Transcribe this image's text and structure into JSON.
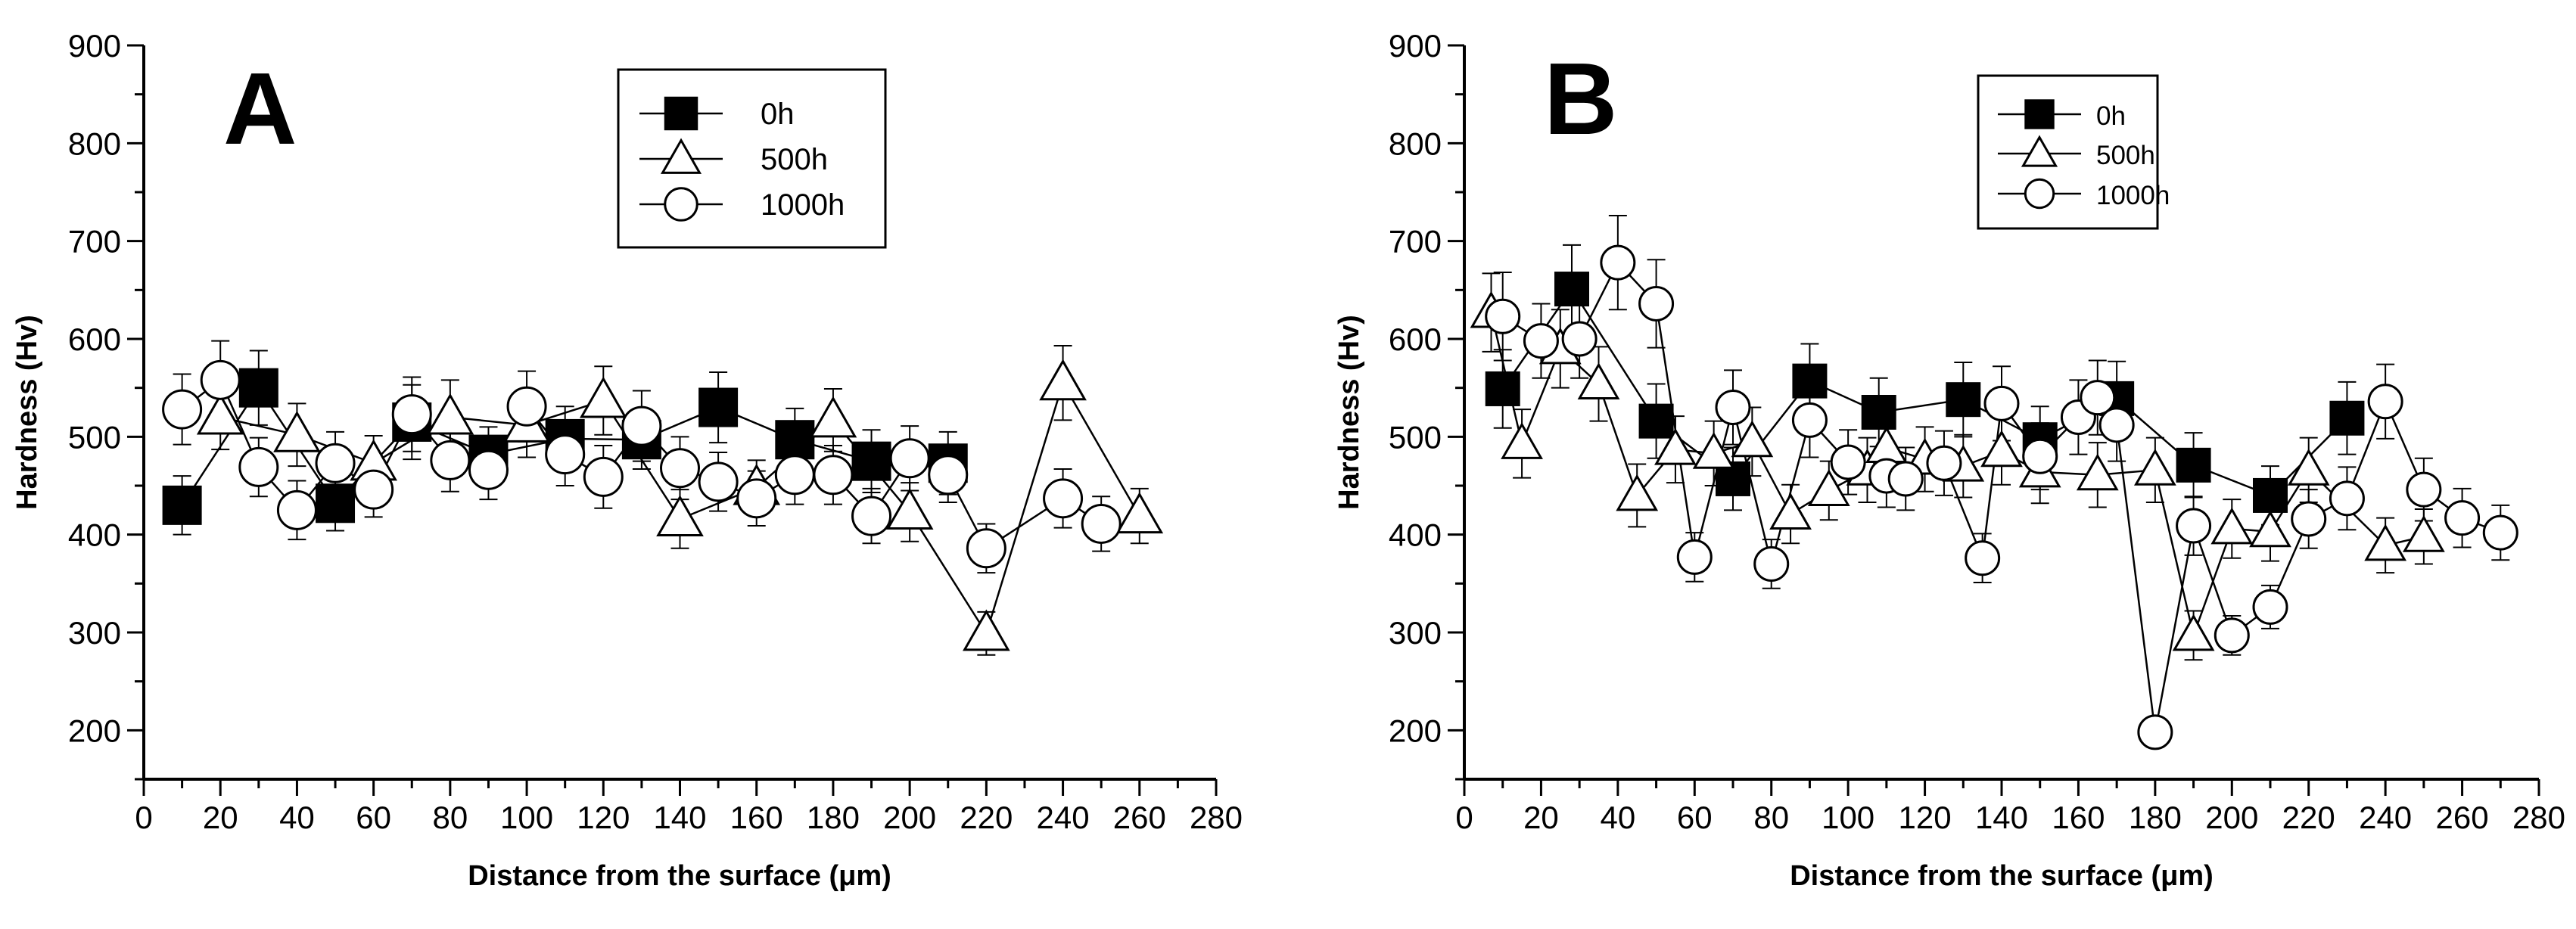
{
  "chart_data": [
    {
      "type": "line",
      "panel_label": "A",
      "xlabel_prefix": "Distance from the surface (",
      "xlabel_unit": "μm",
      "xlabel_suffix": ")",
      "ylabel": "Hardness (Hv)",
      "xlim": [
        0,
        280
      ],
      "ylim": [
        150,
        900
      ],
      "xticks": [
        0,
        20,
        40,
        60,
        80,
        100,
        120,
        140,
        160,
        180,
        200,
        220,
        240,
        260,
        280
      ],
      "yticks": [
        200,
        300,
        400,
        500,
        600,
        700,
        800,
        900
      ],
      "legend_position": "top-center",
      "series": [
        {
          "name": "0h",
          "marker": "square-filled",
          "x": [
            10,
            30,
            50,
            70,
            90,
            110,
            130,
            150,
            170,
            190,
            210
          ],
          "y": [
            430,
            550,
            432,
            515,
            482,
            498,
            497,
            530,
            497,
            475,
            473
          ],
          "err": [
            30,
            38,
            28,
            38,
            28,
            33,
            30,
            36,
            32,
            32,
            32
          ]
        },
        {
          "name": "500h",
          "marker": "triangle-open",
          "x": [
            20,
            40,
            60,
            80,
            100,
            120,
            140,
            160,
            180,
            200,
            220,
            240,
            260
          ],
          "y": [
            520,
            502,
            473,
            520,
            512,
            537,
            416,
            448,
            517,
            423,
            299,
            555,
            419
          ],
          "err": [
            33,
            32,
            28,
            38,
            33,
            35,
            30,
            28,
            32,
            30,
            22,
            38,
            28
          ]
        },
        {
          "name": "1000h",
          "marker": "circle-open",
          "x": [
            10,
            20,
            30,
            40,
            50,
            60,
            70,
            80,
            90,
            100,
            110,
            120,
            130,
            140,
            150,
            160,
            170,
            180,
            190,
            200,
            210,
            220,
            240,
            250
          ],
          "y": [
            528,
            558,
            469,
            425,
            473,
            446,
            523,
            476,
            466,
            531,
            482,
            459,
            511,
            468,
            454,
            437,
            461,
            461,
            419,
            478,
            461,
            386,
            437,
            411
          ],
          "err": [
            36,
            40,
            30,
            30,
            32,
            28,
            38,
            32,
            30,
            36,
            32,
            32,
            36,
            32,
            30,
            28,
            30,
            30,
            28,
            33,
            28,
            25,
            30,
            28
          ]
        }
      ]
    },
    {
      "type": "line",
      "panel_label": "B",
      "xlabel_prefix": "Distance from the surface (",
      "xlabel_unit": "μm",
      "xlabel_suffix": ")",
      "ylabel": "Hardness (Hv)",
      "xlim": [
        0,
        280
      ],
      "ylim": [
        150,
        900
      ],
      "xticks": [
        0,
        20,
        40,
        60,
        80,
        100,
        120,
        140,
        160,
        180,
        200,
        220,
        240,
        260,
        280
      ],
      "yticks": [
        200,
        300,
        400,
        500,
        600,
        700,
        800,
        900
      ],
      "legend_position": "top-right",
      "series": [
        {
          "name": "0h",
          "marker": "square-filled",
          "x": [
            10,
            28,
            50,
            70,
            90,
            108,
            130,
            150,
            170,
            190,
            210,
            230
          ],
          "y": [
            549,
            651,
            516,
            457,
            557,
            525,
            538,
            497,
            539,
            471,
            440,
            519
          ],
          "err": [
            40,
            45,
            38,
            32,
            38,
            35,
            38,
            34,
            38,
            33,
            30,
            37
          ]
        },
        {
          "name": "500h",
          "marker": "triangle-open",
          "x": [
            7,
            15,
            25,
            35,
            45,
            55,
            65,
            75,
            85,
            95,
            105,
            110,
            120,
            130,
            140,
            150,
            165,
            180,
            190,
            200,
            210,
            220,
            240,
            250
          ],
          "y": [
            627,
            493,
            590,
            554,
            440,
            487,
            483,
            495,
            421,
            445,
            466,
            489,
            477,
            470,
            485,
            464,
            461,
            466,
            297,
            406,
            403,
            466,
            389,
            398
          ],
          "err": [
            40,
            35,
            40,
            38,
            32,
            34,
            33,
            35,
            30,
            30,
            33,
            33,
            33,
            32,
            34,
            32,
            33,
            33,
            25,
            30,
            30,
            33,
            28,
            28
          ]
        },
        {
          "name": "1000h",
          "marker": "circle-open",
          "x": [
            10,
            20,
            30,
            40,
            50,
            60,
            70,
            80,
            90,
            100,
            110,
            115,
            125,
            135,
            140,
            150,
            160,
            165,
            170,
            180,
            190,
            200,
            210,
            220,
            230,
            240,
            250,
            260,
            270
          ],
          "y": [
            623,
            598,
            600,
            678,
            636,
            377,
            530,
            370,
            517,
            474,
            460,
            457,
            473,
            376,
            534,
            480,
            520,
            540,
            512,
            198,
            409,
            297,
            326,
            416,
            437,
            536,
            446,
            417,
            402
          ],
          "err": [
            45,
            38,
            40,
            48,
            45,
            25,
            38,
            25,
            38,
            33,
            32,
            32,
            33,
            25,
            38,
            34,
            38,
            38,
            37,
            15,
            30,
            20,
            22,
            30,
            32,
            38,
            32,
            30,
            28
          ]
        }
      ]
    }
  ]
}
